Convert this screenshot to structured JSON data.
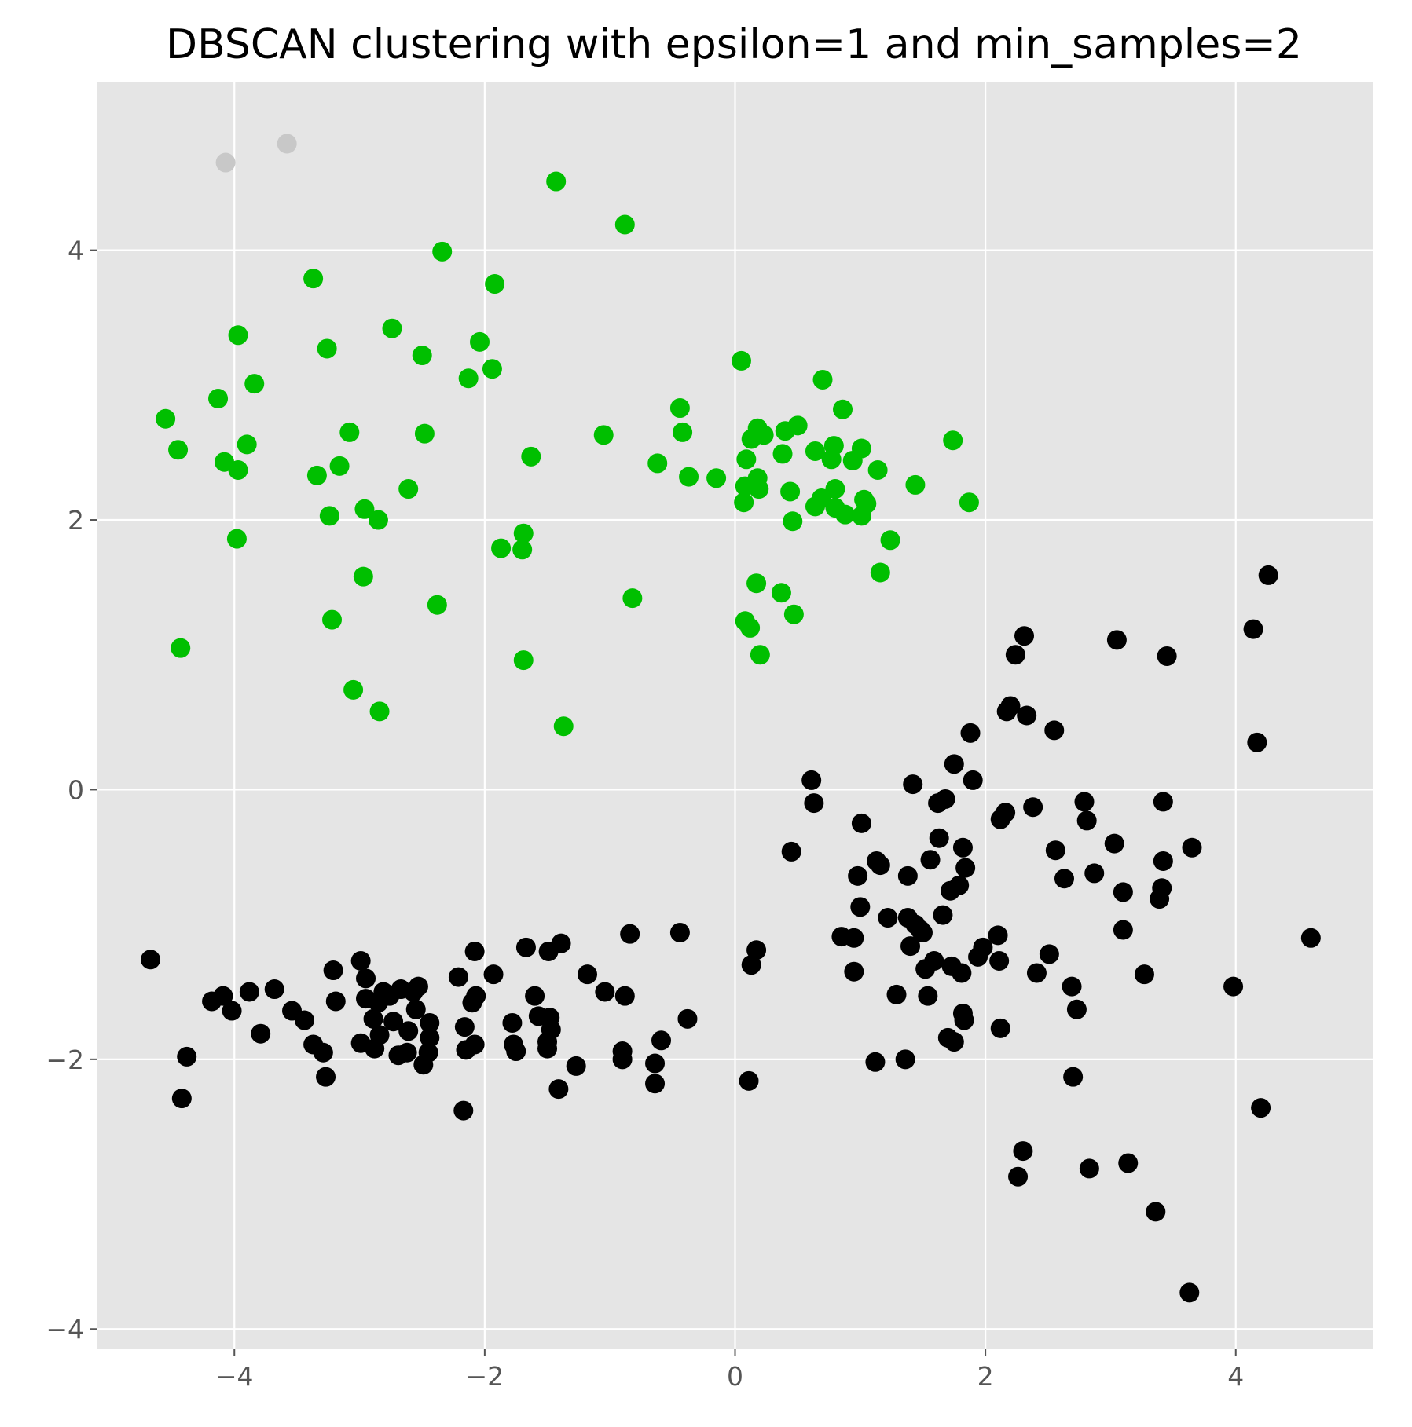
{
  "chart_data": {
    "type": "scatter",
    "title": "DBSCAN clustering with epsilon=1 and min_samples=2",
    "xlabel": "",
    "ylabel": "",
    "xlim": [
      -5.1,
      5.1
    ],
    "ylim": [
      -4.15,
      5.25
    ],
    "x_ticks": [
      -4,
      -2,
      0,
      2,
      4
    ],
    "y_ticks": [
      -4,
      -2,
      0,
      2,
      4
    ],
    "x_tick_labels": [
      "−4",
      "−2",
      "0",
      "2",
      "4"
    ],
    "y_tick_labels": [
      "−4",
      "−2",
      "0",
      "2",
      "4"
    ],
    "grid": true,
    "style": "ggplot",
    "series": [
      {
        "color": "#c8c8c8",
        "points": [
          [
            -4.07,
            4.65
          ],
          [
            -3.58,
            4.79
          ]
        ]
      },
      {
        "color": "#00bf00",
        "points": [
          [
            -4.55,
            2.75
          ],
          [
            -4.45,
            2.52
          ],
          [
            -4.43,
            1.05
          ],
          [
            -4.13,
            2.9
          ],
          [
            -4.08,
            2.43
          ],
          [
            -3.97,
            3.37
          ],
          [
            -3.97,
            2.37
          ],
          [
            -3.98,
            1.86
          ],
          [
            -3.9,
            2.56
          ],
          [
            -3.84,
            3.01
          ],
          [
            -3.37,
            3.79
          ],
          [
            -3.34,
            2.33
          ],
          [
            -3.26,
            3.27
          ],
          [
            -3.24,
            2.03
          ],
          [
            -3.22,
            1.26
          ],
          [
            -3.16,
            2.4
          ],
          [
            -3.08,
            2.65
          ],
          [
            -3.05,
            0.74
          ],
          [
            -2.96,
            2.08
          ],
          [
            -2.97,
            1.58
          ],
          [
            -2.85,
            2.0
          ],
          [
            -2.84,
            0.58
          ],
          [
            -2.74,
            3.42
          ],
          [
            -2.61,
            2.23
          ],
          [
            -2.5,
            3.22
          ],
          [
            -2.48,
            2.64
          ],
          [
            -2.38,
            1.37
          ],
          [
            -2.34,
            3.99
          ],
          [
            -2.13,
            3.05
          ],
          [
            -2.04,
            3.32
          ],
          [
            -1.94,
            3.12
          ],
          [
            -1.92,
            3.75
          ],
          [
            -1.87,
            1.79
          ],
          [
            -1.69,
            1.9
          ],
          [
            -1.7,
            1.78
          ],
          [
            -1.69,
            0.96
          ],
          [
            -1.63,
            2.47
          ],
          [
            -1.43,
            4.51
          ],
          [
            -1.37,
            0.47
          ],
          [
            -1.05,
            2.63
          ],
          [
            -0.88,
            4.19
          ],
          [
            -0.82,
            1.42
          ],
          [
            -0.62,
            2.42
          ],
          [
            -0.44,
            2.83
          ],
          [
            -0.42,
            2.65
          ],
          [
            -0.37,
            2.32
          ],
          [
            -0.15,
            2.31
          ],
          [
            0.05,
            3.18
          ],
          [
            0.07,
            2.13
          ],
          [
            0.08,
            2.25
          ],
          [
            0.09,
            2.45
          ],
          [
            0.08,
            1.25
          ],
          [
            0.13,
            2.6
          ],
          [
            0.12,
            1.2
          ],
          [
            0.17,
            1.53
          ],
          [
            0.18,
            2.68
          ],
          [
            0.18,
            2.31
          ],
          [
            0.19,
            2.23
          ],
          [
            0.2,
            1.0
          ],
          [
            0.23,
            2.63
          ],
          [
            0.37,
            1.46
          ],
          [
            0.38,
            2.49
          ],
          [
            0.4,
            2.66
          ],
          [
            0.44,
            2.21
          ],
          [
            0.46,
            1.99
          ],
          [
            0.47,
            1.3
          ],
          [
            0.5,
            2.7
          ],
          [
            0.64,
            2.1
          ],
          [
            0.64,
            2.51
          ],
          [
            0.69,
            2.16
          ],
          [
            0.7,
            3.04
          ],
          [
            0.77,
            2.45
          ],
          [
            0.79,
            2.55
          ],
          [
            0.8,
            2.23
          ],
          [
            0.8,
            2.09
          ],
          [
            0.86,
            2.82
          ],
          [
            0.88,
            2.04
          ],
          [
            0.94,
            2.44
          ],
          [
            1.01,
            2.03
          ],
          [
            1.01,
            2.53
          ],
          [
            1.03,
            2.15
          ],
          [
            1.05,
            2.12
          ],
          [
            1.14,
            2.37
          ],
          [
            1.16,
            1.61
          ],
          [
            1.24,
            1.85
          ],
          [
            1.44,
            2.26
          ],
          [
            1.74,
            2.59
          ],
          [
            1.87,
            2.13
          ]
        ]
      },
      {
        "color": "#000000",
        "points": [
          [
            -4.67,
            -1.26
          ],
          [
            -4.42,
            -2.29
          ],
          [
            -4.38,
            -1.98
          ],
          [
            -4.18,
            -1.57
          ],
          [
            -4.09,
            -1.53
          ],
          [
            -4.02,
            -1.64
          ],
          [
            -3.88,
            -1.5
          ],
          [
            -3.79,
            -1.81
          ],
          [
            -3.68,
            -1.48
          ],
          [
            -3.54,
            -1.64
          ],
          [
            -3.44,
            -1.71
          ],
          [
            -3.37,
            -1.89
          ],
          [
            -3.29,
            -1.95
          ],
          [
            -3.27,
            -2.13
          ],
          [
            -3.21,
            -1.34
          ],
          [
            -3.19,
            -1.57
          ],
          [
            -2.99,
            -1.27
          ],
          [
            -2.99,
            -1.88
          ],
          [
            -2.95,
            -1.4
          ],
          [
            -2.95,
            -1.55
          ],
          [
            -2.89,
            -1.7
          ],
          [
            -2.88,
            -1.92
          ],
          [
            -2.85,
            -1.58
          ],
          [
            -2.84,
            -1.82
          ],
          [
            -2.81,
            -1.5
          ],
          [
            -2.76,
            -1.53
          ],
          [
            -2.73,
            -1.72
          ],
          [
            -2.69,
            -1.97
          ],
          [
            -2.67,
            -1.48
          ],
          [
            -2.62,
            -1.95
          ],
          [
            -2.61,
            -1.79
          ],
          [
            -2.57,
            -1.5
          ],
          [
            -2.55,
            -1.63
          ],
          [
            -2.53,
            -1.46
          ],
          [
            -2.49,
            -2.04
          ],
          [
            -2.45,
            -1.95
          ],
          [
            -2.44,
            -1.73
          ],
          [
            -2.44,
            -1.84
          ],
          [
            -2.21,
            -1.39
          ],
          [
            -2.16,
            -1.76
          ],
          [
            -2.15,
            -1.93
          ],
          [
            -2.17,
            -2.38
          ],
          [
            -2.1,
            -1.58
          ],
          [
            -2.08,
            -1.89
          ],
          [
            -2.08,
            -1.2
          ],
          [
            -2.07,
            -1.53
          ],
          [
            -1.93,
            -1.37
          ],
          [
            -1.78,
            -1.73
          ],
          [
            -1.77,
            -1.89
          ],
          [
            -1.75,
            -1.94
          ],
          [
            -1.67,
            -1.17
          ],
          [
            -1.6,
            -1.53
          ],
          [
            -1.57,
            -1.68
          ],
          [
            -1.5,
            -1.92
          ],
          [
            -1.5,
            -1.87
          ],
          [
            -1.49,
            -1.2
          ],
          [
            -1.48,
            -1.69
          ],
          [
            -1.47,
            -1.78
          ],
          [
            -1.41,
            -2.22
          ],
          [
            -1.39,
            -1.14
          ],
          [
            -1.27,
            -2.05
          ],
          [
            -1.18,
            -1.37
          ],
          [
            -1.04,
            -1.5
          ],
          [
            -0.9,
            -1.94
          ],
          [
            -0.9,
            -2.0
          ],
          [
            -0.88,
            -1.53
          ],
          [
            -0.84,
            -1.07
          ],
          [
            -0.64,
            -2.03
          ],
          [
            -0.64,
            -2.18
          ],
          [
            -0.59,
            -1.86
          ],
          [
            -0.44,
            -1.06
          ],
          [
            -0.38,
            -1.7
          ],
          [
            0.11,
            -2.16
          ],
          [
            0.13,
            -1.3
          ],
          [
            0.17,
            -1.19
          ],
          [
            0.45,
            -0.46
          ],
          [
            0.61,
            0.07
          ],
          [
            0.63,
            -0.1
          ],
          [
            0.85,
            -1.09
          ],
          [
            0.95,
            -1.1
          ],
          [
            0.95,
            -1.35
          ],
          [
            0.98,
            -0.64
          ],
          [
            1.0,
            -0.87
          ],
          [
            1.01,
            -0.25
          ],
          [
            1.12,
            -2.02
          ],
          [
            1.13,
            -0.53
          ],
          [
            1.16,
            -0.56
          ],
          [
            1.22,
            -0.95
          ],
          [
            1.29,
            -1.52
          ],
          [
            1.36,
            -2.0
          ],
          [
            1.38,
            -0.64
          ],
          [
            1.38,
            -0.95
          ],
          [
            1.4,
            -1.16
          ],
          [
            1.42,
            0.04
          ],
          [
            1.44,
            -1.0
          ],
          [
            1.48,
            -1.04
          ],
          [
            1.5,
            -1.06
          ],
          [
            1.52,
            -1.33
          ],
          [
            1.54,
            -1.53
          ],
          [
            1.56,
            -0.52
          ],
          [
            1.59,
            -1.27
          ],
          [
            1.62,
            -0.1
          ],
          [
            1.63,
            -0.36
          ],
          [
            1.66,
            -0.93
          ],
          [
            1.68,
            -0.07
          ],
          [
            1.7,
            -1.84
          ],
          [
            1.72,
            -0.75
          ],
          [
            1.73,
            -1.31
          ],
          [
            1.75,
            0.19
          ],
          [
            1.75,
            -1.87
          ],
          [
            1.79,
            -0.71
          ],
          [
            1.81,
            -1.36
          ],
          [
            1.82,
            -0.43
          ],
          [
            1.82,
            -1.66
          ],
          [
            1.83,
            -1.71
          ],
          [
            1.84,
            -0.58
          ],
          [
            1.88,
            0.42
          ],
          [
            1.9,
            0.07
          ],
          [
            1.94,
            -1.24
          ],
          [
            1.98,
            -1.17
          ],
          [
            2.1,
            -1.08
          ],
          [
            2.11,
            -1.27
          ],
          [
            2.12,
            -0.22
          ],
          [
            2.12,
            -1.77
          ],
          [
            2.16,
            -0.17
          ],
          [
            2.17,
            0.58
          ],
          [
            2.2,
            0.62
          ],
          [
            2.24,
            1.0
          ],
          [
            2.26,
            -2.87
          ],
          [
            2.3,
            -2.68
          ],
          [
            2.31,
            1.14
          ],
          [
            2.33,
            0.55
          ],
          [
            2.38,
            -0.13
          ],
          [
            2.41,
            -1.36
          ],
          [
            2.51,
            -1.22
          ],
          [
            2.55,
            0.44
          ],
          [
            2.56,
            -0.45
          ],
          [
            2.63,
            -0.66
          ],
          [
            2.69,
            -1.46
          ],
          [
            2.7,
            -2.13
          ],
          [
            2.73,
            -1.63
          ],
          [
            2.79,
            -0.09
          ],
          [
            2.81,
            -0.23
          ],
          [
            2.83,
            -2.81
          ],
          [
            2.87,
            -0.62
          ],
          [
            3.03,
            -0.4
          ],
          [
            3.05,
            1.11
          ],
          [
            3.1,
            -0.76
          ],
          [
            3.1,
            -1.04
          ],
          [
            3.14,
            -2.77
          ],
          [
            3.27,
            -1.37
          ],
          [
            3.36,
            -3.13
          ],
          [
            3.39,
            -0.81
          ],
          [
            3.41,
            -0.73
          ],
          [
            3.42,
            -0.09
          ],
          [
            3.42,
            -0.53
          ],
          [
            3.45,
            0.99
          ],
          [
            3.63,
            -3.73
          ],
          [
            3.65,
            -0.43
          ],
          [
            3.98,
            -1.46
          ],
          [
            4.14,
            1.19
          ],
          [
            4.17,
            0.35
          ],
          [
            4.2,
            -2.36
          ],
          [
            4.26,
            1.59
          ],
          [
            4.6,
            -1.1
          ]
        ]
      }
    ]
  }
}
